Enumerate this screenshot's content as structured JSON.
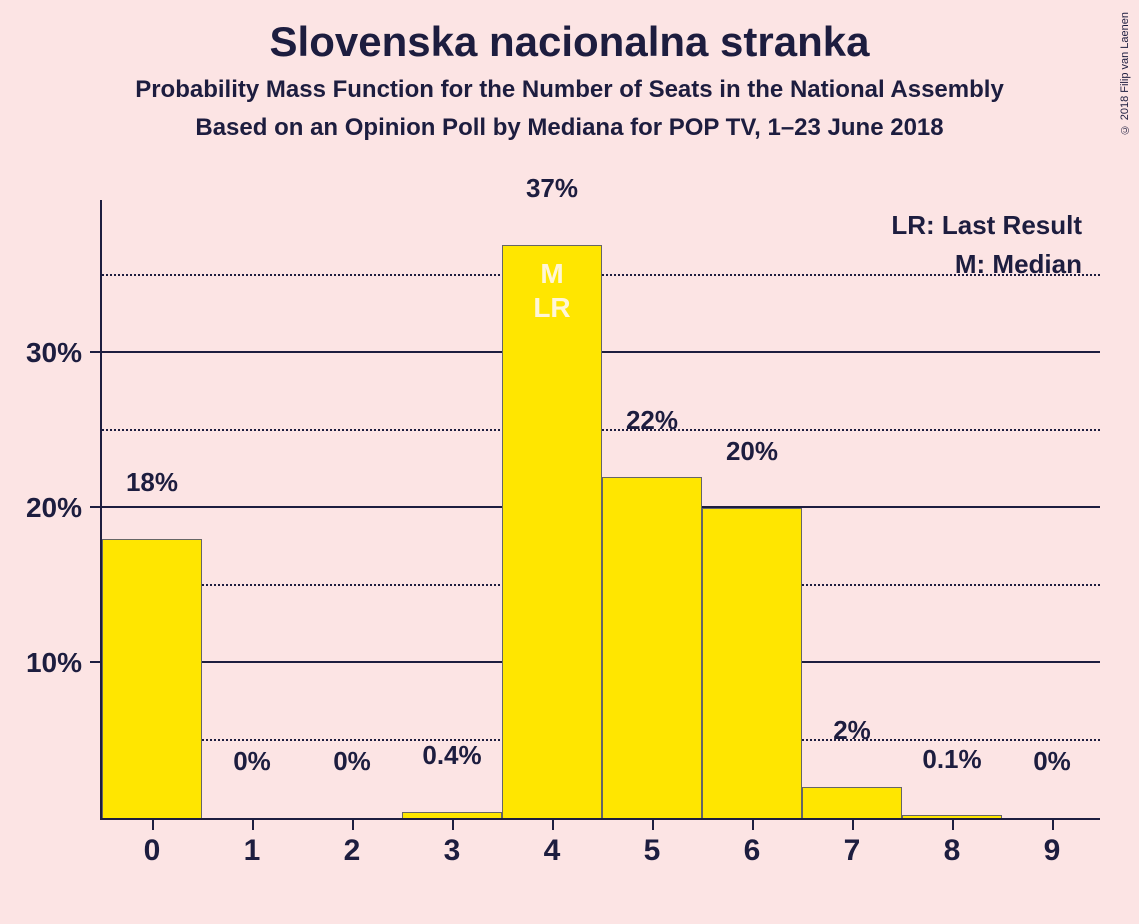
{
  "copyright": "© 2018 Filip van Laenen",
  "titles": {
    "main": "Slovenska nacionalna stranka",
    "sub1": "Probability Mass Function for the Number of Seats in the National Assembly",
    "sub2": "Based on an Opinion Poll by Mediana for POP TV, 1–23 June 2018"
  },
  "legend": {
    "line1": "LR: Last Result",
    "line2": "M: Median"
  },
  "chart": {
    "type": "bar",
    "y_max": 40,
    "y_major_step": 10,
    "y_minor_step": 5,
    "background_color": "#fce4e4",
    "bar_color": "#ffe600",
    "axis_color": "#1d1d3f",
    "text_color": "#1d1d3f",
    "annot_color": "#fff6d8",
    "categories": [
      "0",
      "1",
      "2",
      "3",
      "4",
      "5",
      "6",
      "7",
      "8",
      "9"
    ],
    "values": [
      18,
      0,
      0,
      0.4,
      37,
      22,
      20,
      2,
      0.1,
      0
    ],
    "display_values": [
      "18%",
      "0%",
      "0%",
      "0.4%",
      "37%",
      "22%",
      "20%",
      "2%",
      "0.1%",
      "0%"
    ],
    "y_ticks": [
      "10%",
      "20%",
      "30%"
    ],
    "median_index": 4,
    "last_result_index": 4,
    "annot_m": "M",
    "annot_lr": "LR"
  }
}
